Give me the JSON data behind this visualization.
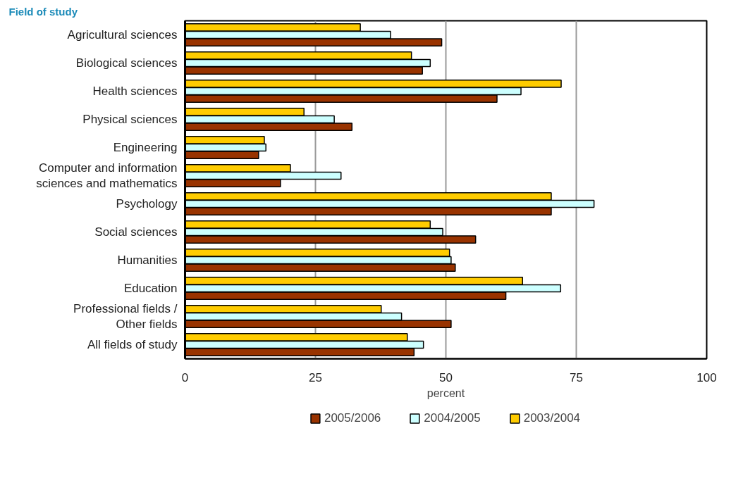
{
  "chart_data": {
    "type": "bar",
    "orientation": "horizontal",
    "title": "Field of study",
    "xlabel": "percent",
    "categories": [
      "Agricultural sciences",
      "Biological sciences",
      "Health sciences",
      "Physical sciences",
      "Engineering",
      "Computer and information\nsciences and mathematics",
      "Psychology",
      "Social sciences",
      "Humanities",
      "Education",
      "Professional fields /\nOther fields",
      "All fields of study"
    ],
    "series": [
      {
        "name": "2005/2006",
        "color": "#993300",
        "values": [
          49.2,
          45.5,
          59.8,
          32.0,
          14.1,
          18.3,
          70.2,
          55.7,
          51.8,
          61.5,
          51.0,
          43.9
        ]
      },
      {
        "name": "2004/2005",
        "color": "#ccffff",
        "values": [
          39.4,
          47.0,
          64.4,
          28.6,
          15.5,
          29.9,
          78.4,
          49.4,
          51.0,
          72.0,
          41.5,
          45.7
        ]
      },
      {
        "name": "2003/2004",
        "color": "#ffcc00",
        "values": [
          33.6,
          43.4,
          72.1,
          22.8,
          15.2,
          20.2,
          70.2,
          47.0,
          50.7,
          64.7,
          37.6,
          42.6
        ]
      }
    ],
    "xlim": [
      0,
      100
    ],
    "xticks": [
      0,
      25,
      50,
      75,
      100
    ],
    "grid": "x",
    "legend": "bottom"
  }
}
